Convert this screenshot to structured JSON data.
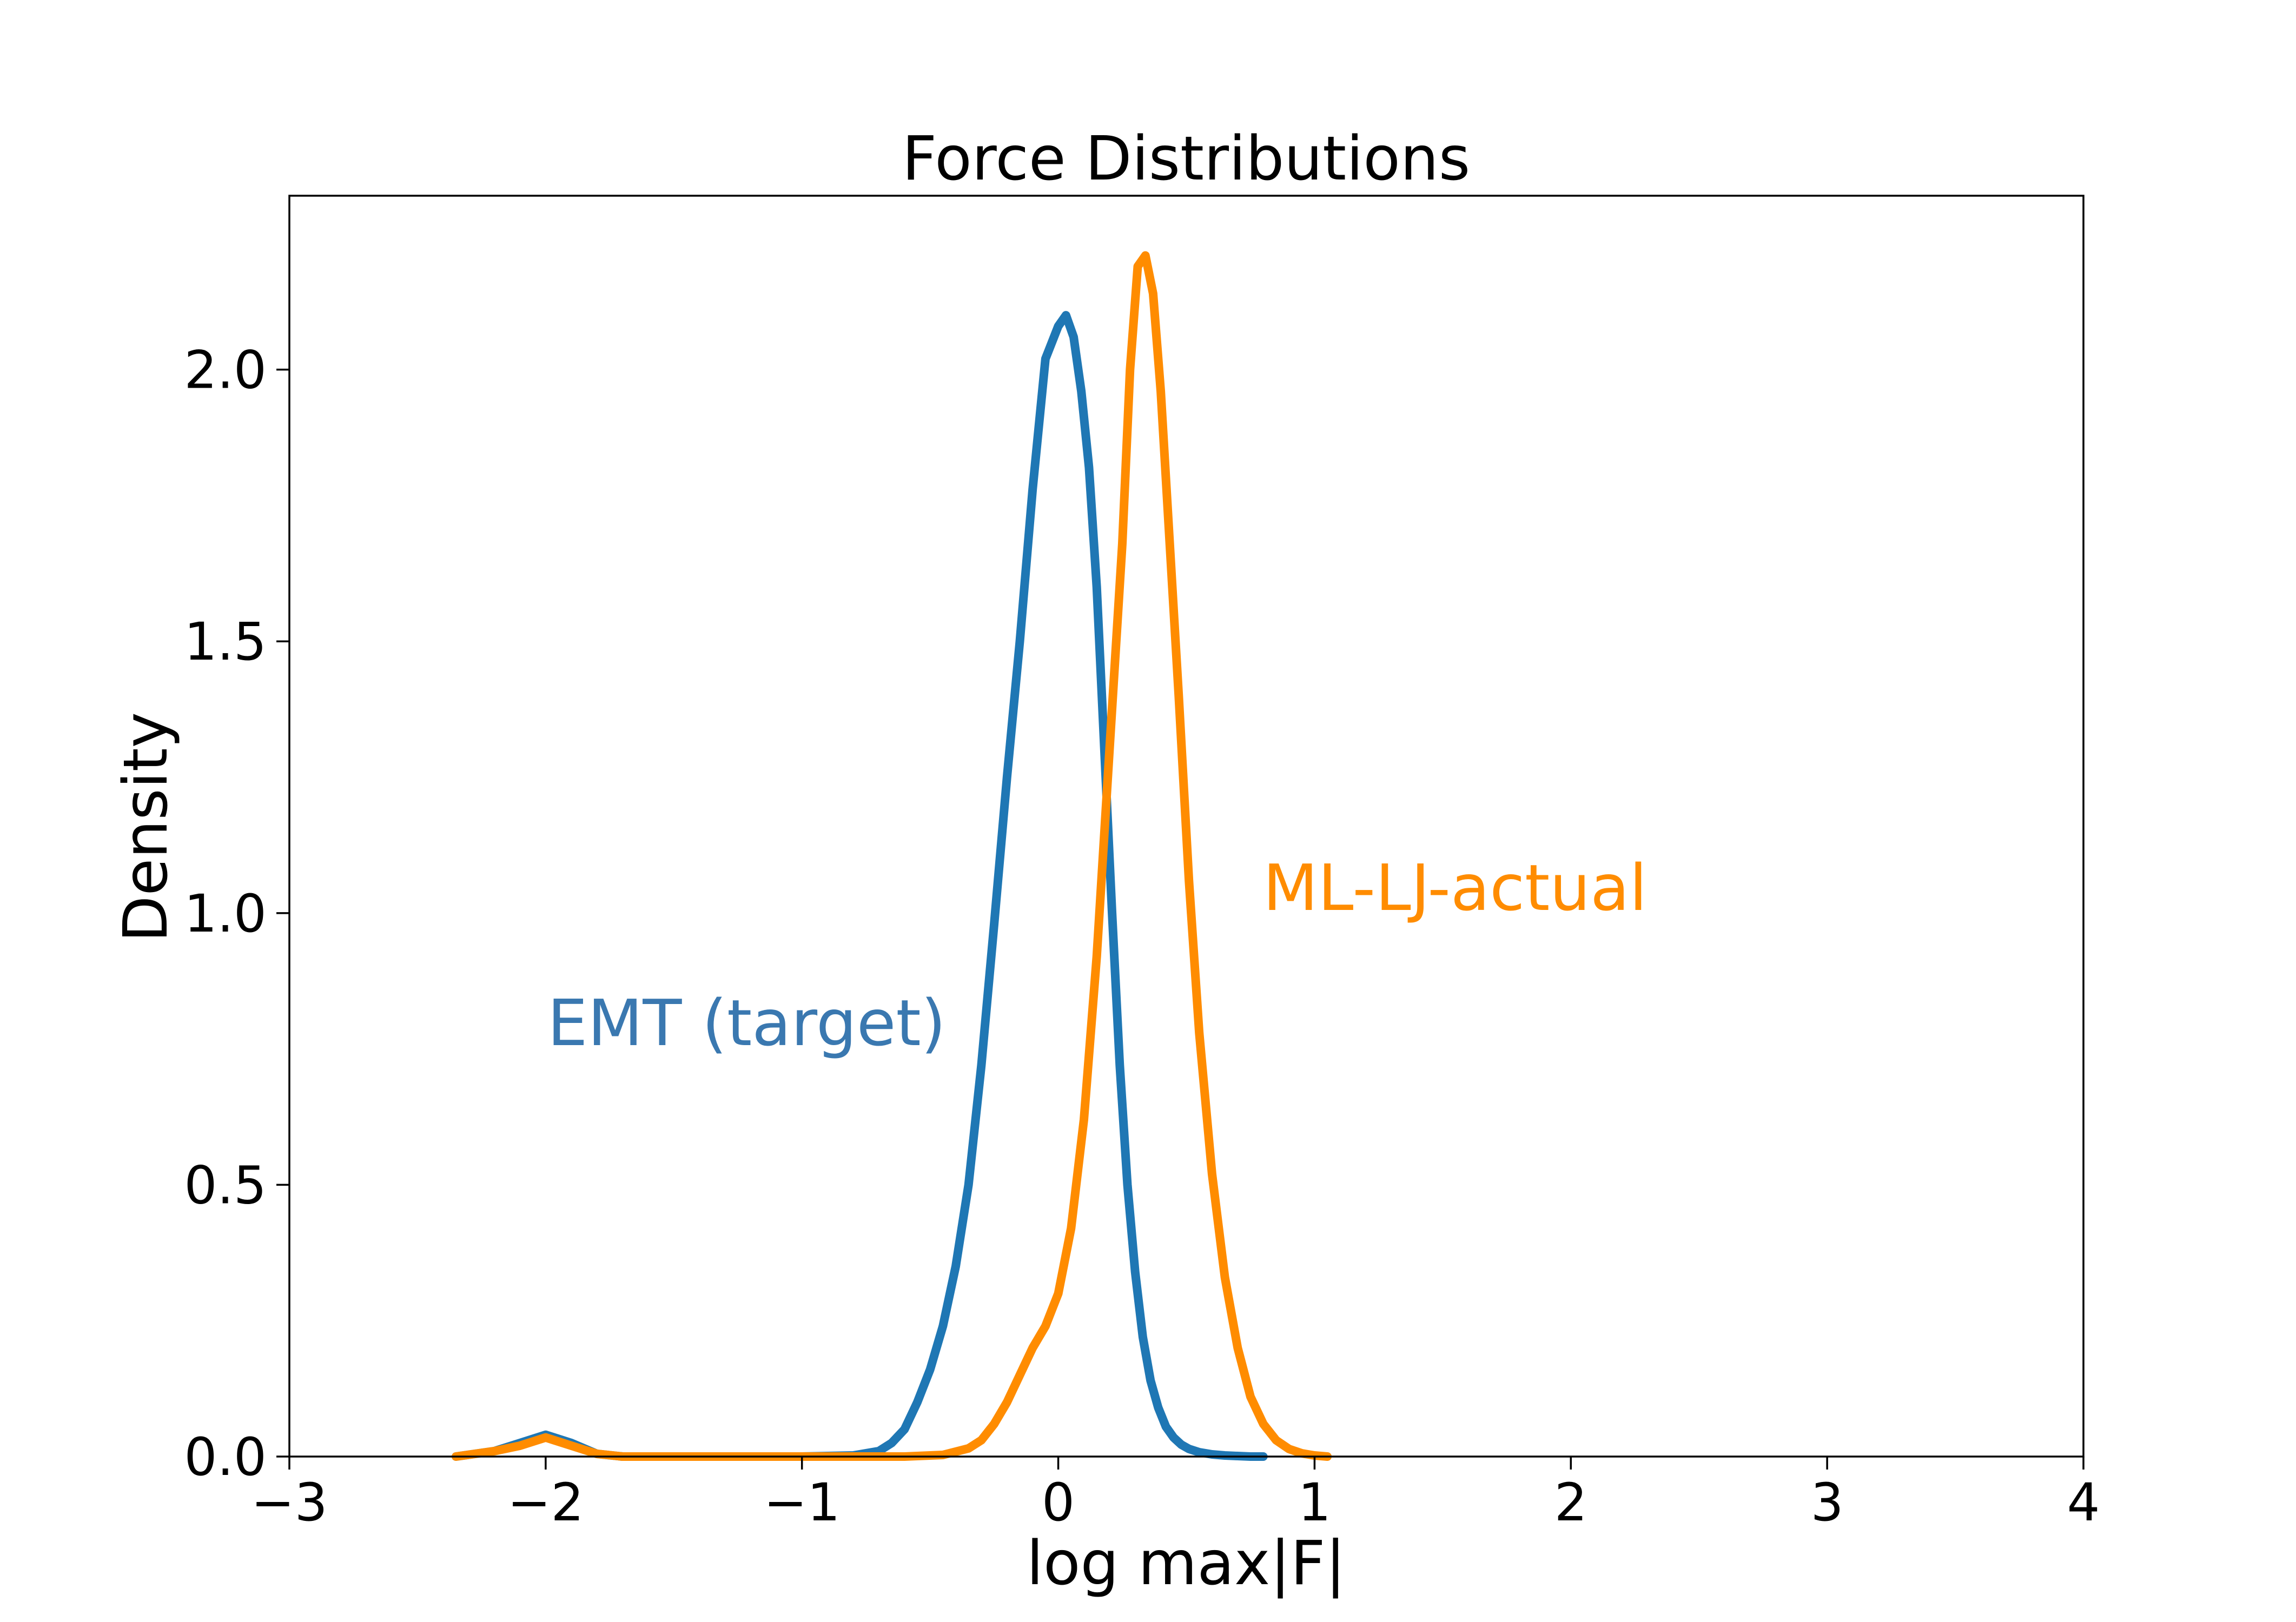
{
  "chart_data": {
    "type": "line",
    "title": "Force Distributions",
    "xlabel": "log max|F|",
    "ylabel": "Density",
    "xlim": [
      -3,
      4
    ],
    "ylim": [
      0,
      2.32
    ],
    "xticks": [
      -3,
      -2,
      -1,
      0,
      1,
      2,
      3,
      4
    ],
    "xtick_labels": [
      "−3",
      "−2",
      "−1",
      "0",
      "1",
      "2",
      "3",
      "4"
    ],
    "yticks": [
      0,
      0.5,
      1.0,
      1.5,
      2.0
    ],
    "ytick_labels": [
      "0.0",
      "0.5",
      "1.0",
      "1.5",
      "2.0"
    ],
    "grid": false,
    "legend": "none",
    "series": [
      {
        "name": "EMT (target)",
        "color": "#1f77b4",
        "label_color": "#3a78b0",
        "x": [
          -2.35,
          -2.2,
          -2.1,
          -2.0,
          -1.9,
          -1.8,
          -1.7,
          -1.5,
          -1.2,
          -1.0,
          -0.8,
          -0.7,
          -0.65,
          -0.6,
          -0.55,
          -0.5,
          -0.45,
          -0.4,
          -0.35,
          -0.3,
          -0.25,
          -0.2,
          -0.15,
          -0.1,
          -0.05,
          0.0,
          0.03,
          0.06,
          0.09,
          0.12,
          0.15,
          0.18,
          0.21,
          0.24,
          0.27,
          0.3,
          0.33,
          0.36,
          0.39,
          0.42,
          0.45,
          0.48,
          0.51,
          0.55,
          0.6,
          0.65,
          0.7,
          0.75,
          0.8
        ],
        "y": [
          0.0,
          0.01,
          0.025,
          0.04,
          0.025,
          0.005,
          0.0,
          0.0,
          0.0,
          0.0,
          0.002,
          0.01,
          0.025,
          0.05,
          0.1,
          0.16,
          0.24,
          0.35,
          0.5,
          0.72,
          0.98,
          1.25,
          1.5,
          1.78,
          2.02,
          2.08,
          2.1,
          2.06,
          1.96,
          1.82,
          1.6,
          1.3,
          1.0,
          0.72,
          0.5,
          0.34,
          0.22,
          0.14,
          0.09,
          0.055,
          0.035,
          0.022,
          0.014,
          0.008,
          0.004,
          0.002,
          0.001,
          0.0,
          0.0
        ]
      },
      {
        "name": "ML-LJ-actual",
        "color": "#ff8c00",
        "label_color": "#ff8c00",
        "x": [
          -2.35,
          -2.2,
          -2.1,
          -2.0,
          -1.9,
          -1.8,
          -1.7,
          -1.5,
          -1.2,
          -1.0,
          -0.8,
          -0.6,
          -0.45,
          -0.35,
          -0.3,
          -0.25,
          -0.2,
          -0.15,
          -0.1,
          -0.05,
          0.0,
          0.05,
          0.1,
          0.15,
          0.2,
          0.25,
          0.28,
          0.31,
          0.34,
          0.37,
          0.4,
          0.43,
          0.47,
          0.51,
          0.55,
          0.6,
          0.65,
          0.7,
          0.75,
          0.8,
          0.85,
          0.9,
          0.95,
          1.0,
          1.05
        ],
        "y": [
          0.0,
          0.01,
          0.02,
          0.035,
          0.02,
          0.005,
          0.0,
          0.0,
          0.0,
          0.0,
          0.0,
          0.0,
          0.003,
          0.015,
          0.03,
          0.06,
          0.1,
          0.15,
          0.2,
          0.24,
          0.3,
          0.42,
          0.62,
          0.92,
          1.3,
          1.68,
          2.0,
          2.19,
          2.21,
          2.14,
          1.96,
          1.72,
          1.4,
          1.06,
          0.78,
          0.52,
          0.33,
          0.2,
          0.11,
          0.06,
          0.03,
          0.014,
          0.006,
          0.002,
          0.0
        ]
      }
    ]
  }
}
